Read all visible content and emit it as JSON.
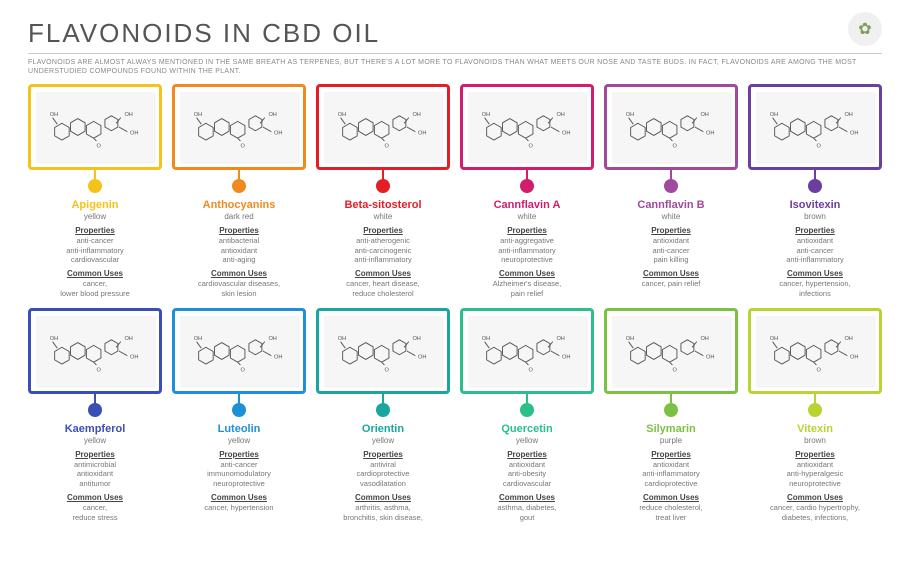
{
  "title": "FLAVONOIDS IN CBD OIL",
  "subtitle": "FLAVONOIDS ARE ALMOST ALWAYS MENTIONED IN THE SAME BREATH AS TERPENES, BUT THERE'S A LOT MORE TO FLAVONOIDS THAN WHAT MEETS OUR NOSE AND TASTE BUDS. IN FACT, FLAVONOIDS ARE AMONG THE MOST UNDERSTUDIED COMPOUNDS FOUND WITHIN THE PLANT.",
  "labels": {
    "properties": "Properties",
    "uses": "Common Uses"
  },
  "logo": "✿",
  "items": [
    {
      "name": "Apigenin",
      "color": "yellow",
      "hex": "#f4c21a",
      "props": [
        "anti-cancer",
        "anti-inflammatory",
        "cardiovascular"
      ],
      "uses": [
        "cancer,",
        "lower blood pressure"
      ]
    },
    {
      "name": "Anthocyanins",
      "color": "dark red",
      "hex": "#f08a1f",
      "props": [
        "antibacterial",
        "antioxidant",
        "anti-aging"
      ],
      "uses": [
        "cardiovascular diseases,",
        "skin lesion"
      ]
    },
    {
      "name": "Beta-sitosterol",
      "color": "white",
      "hex": "#e41e26",
      "props": [
        "anti-atherogenic",
        "anti-carcinogenic",
        "anti-inflammatory"
      ],
      "uses": [
        "cancer, heart disease,",
        "reduce cholesterol"
      ]
    },
    {
      "name": "Cannflavin A",
      "color": "white",
      "hex": "#d11d6b",
      "props": [
        "anti-aggregative",
        "anti-inflammatory",
        "neuroprotective"
      ],
      "uses": [
        "Alzheimer's disease,",
        "pain relief"
      ]
    },
    {
      "name": "Cannflavin B",
      "color": "white",
      "hex": "#a04a9c",
      "props": [
        "antioxidant",
        "anti-cancer",
        "pain killing"
      ],
      "uses": [
        "cancer, pain relief"
      ]
    },
    {
      "name": "Isovitexin",
      "color": "brown",
      "hex": "#6a3fa0",
      "props": [
        "antioxidant",
        "anti-cancer",
        "anti-inflammatory"
      ],
      "uses": [
        "cancer, hypertension,",
        "infections"
      ]
    },
    {
      "name": "Kaempferol",
      "color": "yellow",
      "hex": "#3a4fb5",
      "props": [
        "antimicrobial",
        "antioxidant",
        "antitumor"
      ],
      "uses": [
        "cancer,",
        "reduce stress"
      ]
    },
    {
      "name": "Luteolin",
      "color": "yellow",
      "hex": "#1f8fd6",
      "props": [
        "anti-cancer",
        "immunomodulatory",
        "neuroprotective"
      ],
      "uses": [
        "cancer, hypertension"
      ]
    },
    {
      "name": "Orientin",
      "color": "yellow",
      "hex": "#1aa6a0",
      "props": [
        "antiviral",
        "cardioprotective",
        "vasodilatation"
      ],
      "uses": [
        "arthritis, asthma,",
        "bronchitis, skin disease,"
      ]
    },
    {
      "name": "Quercetin",
      "color": "yellow",
      "hex": "#2bbf8a",
      "props": [
        "antioxidant",
        "anti-obesity",
        "cardiovascular"
      ],
      "uses": [
        "asthma, diabetes,",
        "gout"
      ]
    },
    {
      "name": "Silymarin",
      "color": "purple",
      "hex": "#7cc242",
      "props": [
        "antioxidant",
        "anti-inflammatory",
        "cardioprotective"
      ],
      "uses": [
        "reduce cholesterol,",
        "treat liver"
      ]
    },
    {
      "name": "Vitexin",
      "color": "brown",
      "hex": "#b7d433",
      "props": [
        "antioxidant",
        "anti-hyperalgesic",
        "neuroprotective"
      ],
      "uses": [
        "cancer, cardio hypertrophy,",
        "diabetes, infections,"
      ]
    }
  ]
}
